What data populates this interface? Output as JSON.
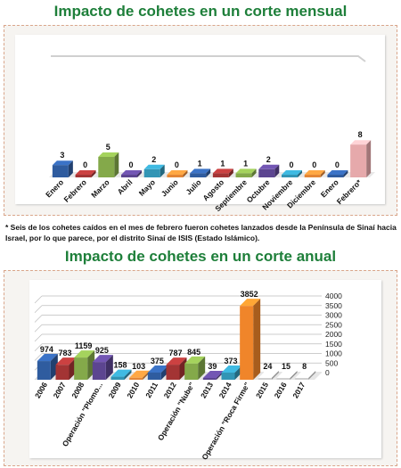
{
  "monthly": {
    "title": "Impacto de cohetes en un corte mensual",
    "chart_data": {
      "type": "bar",
      "categories": [
        "Enero",
        "Febrero",
        "Marzo",
        "Abril",
        "Mayo",
        "Junio",
        "Julio",
        "Agosto",
        "Septiembre",
        "Octubre",
        "Noviembre",
        "Diciembre",
        "Enero",
        "Febrero*"
      ],
      "values": [
        3,
        0,
        5,
        0,
        2,
        0,
        1,
        1,
        1,
        2,
        0,
        0,
        0,
        8
      ],
      "colors": [
        "#2f5c9f",
        "#a33434",
        "#84a94a",
        "#5c4590",
        "#3295b5",
        "#e48636",
        "#2f5c9f",
        "#a33434",
        "#84a94a",
        "#5c4590",
        "#3295b5",
        "#e48636",
        "#2f5c9f",
        "#e6a9ab"
      ],
      "ylim": [
        0,
        25
      ]
    }
  },
  "note": "* Seis de los cohetes caídos en el mes de febrero fueron cohetes lanzados desde la Península de Sinaí hacia Israel, por lo que parece, por el distrito Sinaí de ISIS (Estado Islámico).",
  "annual": {
    "title": "Impacto de cohetes en un corte anual",
    "chart_data": {
      "type": "bar",
      "categories": [
        "2006",
        "2007",
        "2008",
        "Operación \"Plomo...",
        "2009",
        "2010",
        "2011",
        "2012",
        "Operación \"Nube\"",
        "2013",
        "2014",
        "Operación \"Roca Firme\"",
        "2015",
        "2016",
        "2017"
      ],
      "values": [
        974,
        783,
        1159,
        925,
        158,
        103,
        375,
        787,
        845,
        39,
        373,
        3852,
        24,
        15,
        8
      ],
      "colors": [
        "#2f5c9f",
        "#a33434",
        "#84a94a",
        "#5c4590",
        "#3295b5",
        "#e48636",
        "#2f5c9f",
        "#a33434",
        "#84a94a",
        "#5c4590",
        "#3295b5",
        "#f0852a",
        "#cfcfcf",
        "#cfcfcf",
        "#cfcfcf"
      ],
      "ylim": [
        0,
        4000
      ],
      "yticks": [
        0,
        500,
        1000,
        1500,
        2000,
        2500,
        3000,
        3500,
        4000
      ]
    }
  }
}
